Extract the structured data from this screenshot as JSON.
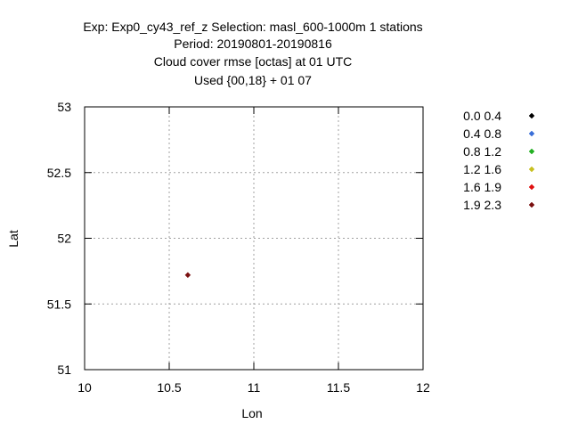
{
  "chart_data": {
    "type": "scatter",
    "title_lines": [
      "Exp: Exp0_cy43_ref_z   Selection: masl_600-1000m      1 stations",
      "Period: 20190801-20190816",
      "Cloud cover rmse [octas] at  01 UTC",
      "Used {00,18} + 01 07"
    ],
    "xlabel": "Lon",
    "ylabel": "Lat",
    "xlim": [
      10,
      12
    ],
    "ylim": [
      51,
      53
    ],
    "x_ticks": [
      10,
      10.5,
      11,
      11.5,
      12
    ],
    "y_ticks": [
      51,
      51.5,
      52,
      52.5,
      53
    ],
    "x_tick_labels": [
      "10",
      "10.5",
      "11",
      "11.5",
      "12"
    ],
    "y_tick_labels": [
      "51",
      "51.5",
      "52",
      "52.5",
      "53"
    ],
    "grid": true,
    "legend_position": "right",
    "legend": [
      {
        "label": "0.0 0.4",
        "color": "#000000"
      },
      {
        "label": "0.4 0.8",
        "color": "#3a6fd8"
      },
      {
        "label": "0.8 1.2",
        "color": "#22b022"
      },
      {
        "label": "1.2 1.6",
        "color": "#c8c020"
      },
      {
        "label": "1.6 1.9",
        "color": "#e01010"
      },
      {
        "label": "1.9 2.3",
        "color": "#7a1010"
      }
    ],
    "points": [
      {
        "x": 10.61,
        "y": 51.72,
        "color": "#7a1010"
      }
    ]
  }
}
